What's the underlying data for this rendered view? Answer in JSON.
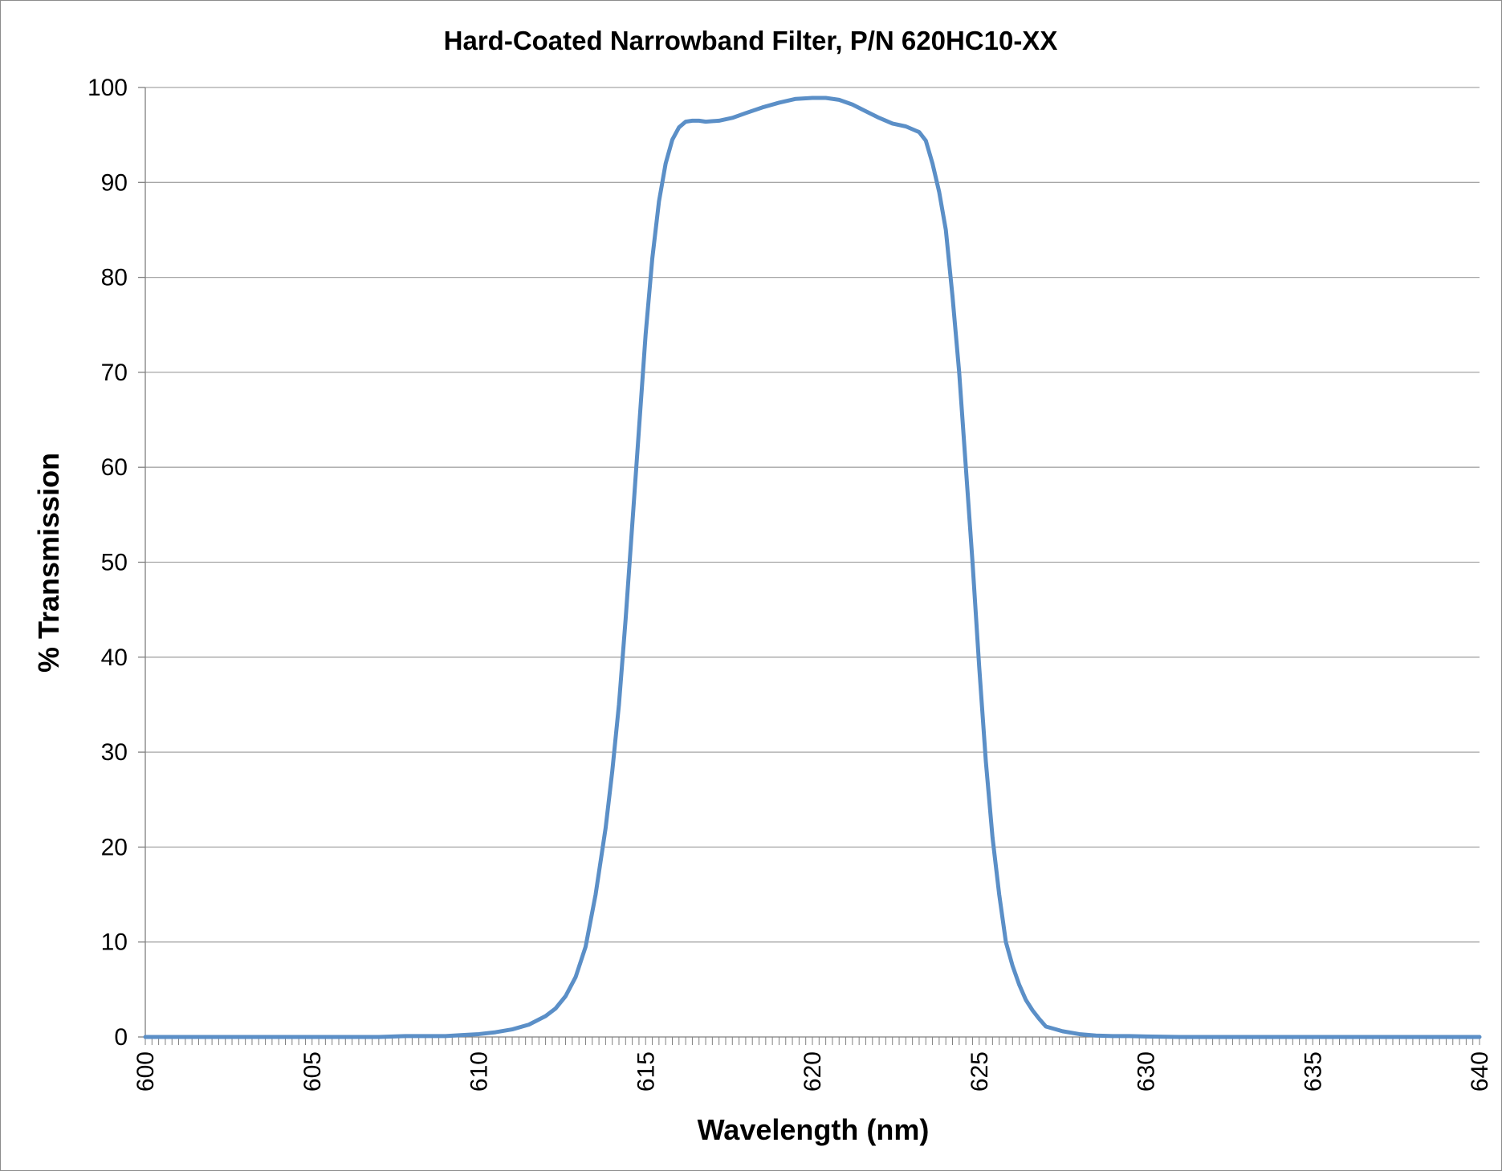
{
  "chart_data": {
    "type": "line",
    "title": "Hard-Coated Narrowband Filter, P/N 620HC10-XX",
    "xlabel": "Wavelength (nm)",
    "ylabel": "% Transmission",
    "xlim": [
      600,
      640
    ],
    "ylim": [
      0,
      100
    ],
    "x_ticks": [
      600,
      605,
      610,
      615,
      620,
      625,
      630,
      635,
      640
    ],
    "x_tick_labels": [
      "600",
      "605",
      "610",
      "615",
      "620",
      "625",
      "630",
      "635",
      "640"
    ],
    "y_ticks": [
      0,
      10,
      20,
      30,
      40,
      50,
      60,
      70,
      80,
      90,
      100
    ],
    "y_tick_labels": [
      "0",
      "10",
      "20",
      "30",
      "40",
      "50",
      "60",
      "70",
      "80",
      "90",
      "100"
    ],
    "x_minor_step": 0.2,
    "grid": "horizontal",
    "legend": "none",
    "colors": {
      "line": "#5b8fc7",
      "grid": "#a6a6a6",
      "axis": "#808080"
    },
    "series": [
      {
        "x": [
          600,
          601,
          602,
          603,
          604,
          605,
          606,
          607,
          607.8,
          608.5,
          609,
          609.5,
          610,
          610.5,
          611,
          611.5,
          612,
          612.3,
          612.6,
          612.9,
          613.2,
          613.5,
          613.8,
          614,
          614.2,
          614.4,
          614.6,
          614.8,
          615,
          615.2,
          615.4,
          615.6,
          615.8,
          616,
          616.2,
          616.4,
          616.6,
          616.8,
          617.2,
          617.6,
          618,
          618.5,
          619,
          619.5,
          620,
          620.4,
          620.8,
          621.2,
          621.6,
          622,
          622.4,
          622.8,
          623.2,
          623.4,
          623.6,
          623.8,
          624,
          624.2,
          624.4,
          624.6,
          624.8,
          625,
          625.2,
          625.4,
          625.6,
          625.8,
          626,
          626.2,
          626.4,
          626.6,
          626.8,
          627,
          627.5,
          628,
          628.5,
          629,
          629.5,
          630,
          631,
          632,
          633,
          634,
          635,
          636,
          637,
          638,
          639,
          640
        ],
        "y": [
          0,
          0,
          0,
          0,
          0,
          0,
          0,
          0,
          0.1,
          0.1,
          0.1,
          0.2,
          0.3,
          0.5,
          0.8,
          1.3,
          2.2,
          3.0,
          4.3,
          6.3,
          9.5,
          15,
          22,
          28,
          35,
          44,
          54,
          64,
          74,
          82,
          88,
          92,
          94.5,
          95.8,
          96.4,
          96.5,
          96.5,
          96.4,
          96.5,
          96.8,
          97.3,
          97.9,
          98.4,
          98.8,
          98.9,
          98.9,
          98.7,
          98.2,
          97.5,
          96.8,
          96.2,
          95.9,
          95.3,
          94.4,
          92,
          89,
          85,
          78,
          70,
          60,
          50,
          39,
          29,
          21,
          15,
          10,
          7.5,
          5.5,
          3.9,
          2.8,
          1.9,
          1.1,
          0.6,
          0.3,
          0.15,
          0.1,
          0.1,
          0.05,
          0,
          0,
          0,
          0,
          0,
          0,
          0,
          0,
          0,
          0
        ]
      }
    ]
  }
}
